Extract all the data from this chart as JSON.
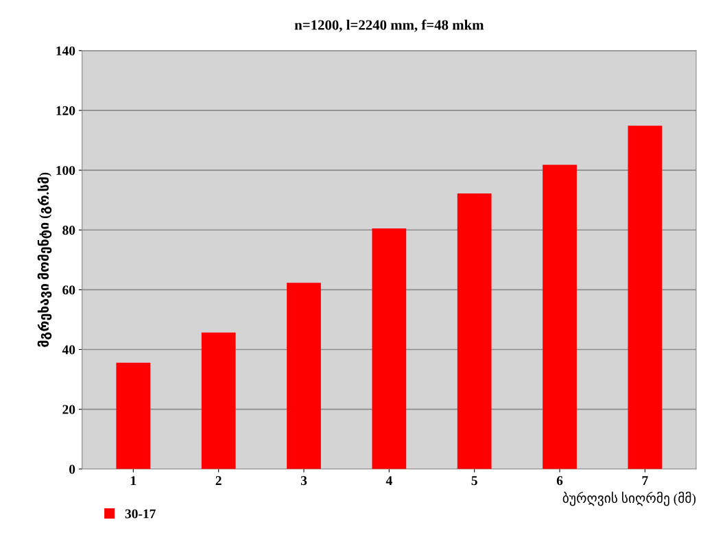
{
  "chart_data": {
    "type": "bar",
    "title": "n=1200, l=2240 mm, f=48 mkm",
    "xlabel": "ბურღვის სიღრმე (მმ)",
    "ylabel": "მგრეხავი მომენტი (გრ.სმ)",
    "categories": [
      "1",
      "2",
      "3",
      "4",
      "5",
      "6",
      "7"
    ],
    "series": [
      {
        "name": "30-17",
        "color": "#ff0000",
        "values": [
          35.6,
          45.7,
          62.3,
          80.5,
          92.2,
          101.8,
          114.9
        ]
      }
    ],
    "ylim": [
      0,
      140
    ],
    "yticks": [
      0,
      20,
      40,
      60,
      80,
      100,
      120,
      140
    ],
    "grid": "y",
    "legend": "bottom left"
  }
}
